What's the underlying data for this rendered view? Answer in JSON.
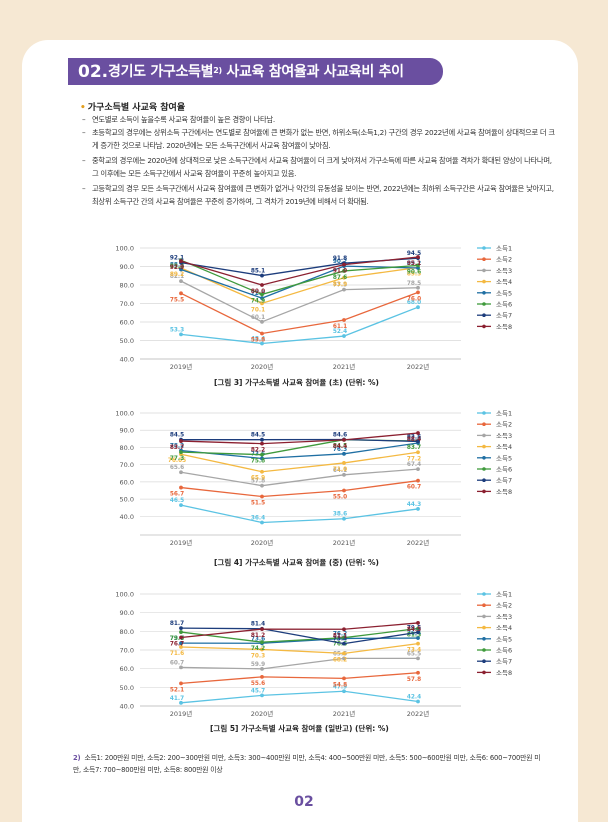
{
  "header": {
    "number": "02.",
    "title_pre": "경기도 가구소득별",
    "title_sup": "2)",
    "title_post": "사교육 참여율과 사교육비 추이"
  },
  "section_title": "가구소득별 사교육 참여율",
  "bullets": [
    "연도별로 소득이 높을수록 사교육 참여율이 높은 경향이 나타남.",
    "초등학교의 경우에는 상위소득 구간에서는 연도별로 참여율에 큰 변화가 없는 반면, 하위소득(소득1,2) 구간의 경우 2022년에 사교육 참여율이 상대적으로 더 크게 증가한 것으로 나타남. 2020년에는 모든 소득구간에서 사교육 참여율이 낮아짐.",
    "중학교의 경우에는 2020년에 상대적으로 낮은 소득구간에서 사교육 참여율이 더 크게 낮아져서 가구소득에 따른 사교육 참여율 격차가 확대된 양상이 나타나며, 그 이후에는 모든 소득구간에서 사교육 참여율이 꾸준히 높아지고 있음.",
    "고등학교의 경우 모든 소득구간에서 사교육 참여율에 큰 변화가 없거나 약간의 유동성을 보이는 반면, 2022년에는 최하위 소득구간은 사교육 참여율은 낮아지고, 최상위 소득구간 간의 사교육 참여율은 꾸준히 증가하여, 그 격차가 2019년에 비해서 더 확대됨."
  ],
  "colors": [
    "#5bc3e3",
    "#e8673c",
    "#a6a6a6",
    "#f4b942",
    "#1f6fa3",
    "#3f9a3c",
    "#1d3d7c",
    "#8b2030"
  ],
  "chart_data": [
    {
      "type": "line",
      "title": "[그림 3] 가구소득별 사교육 참여율 (초) (단위: %)",
      "x": [
        "2019년",
        "2020년",
        "2021년",
        "2022년"
      ],
      "ylim": [
        40,
        100
      ],
      "yticks": [
        "100.0",
        "90.0",
        "80.0",
        "70.0",
        "60.0",
        "50.0",
        "40.0"
      ],
      "series": [
        {
          "name": "소득1",
          "values": [
            53.3,
            48.4,
            52.4,
            68.0
          ]
        },
        {
          "name": "소득2",
          "values": [
            75.5,
            53.8,
            61.1,
            76.0
          ]
        },
        {
          "name": "소득3",
          "values": [
            82.1,
            60.1,
            77.5,
            78.5
          ]
        },
        {
          "name": "소득4",
          "values": [
            89.2,
            70.1,
            83.9,
            89.5
          ]
        },
        {
          "name": "소득5",
          "values": [
            88.4,
            72.9,
            90.2,
            89.2
          ]
        },
        {
          "name": "소득6",
          "values": [
            93.4,
            74.9,
            87.6,
            90.6
          ]
        },
        {
          "name": "소득7",
          "values": [
            92.1,
            85.1,
            91.8,
            94.5
          ]
        },
        {
          "name": "소득8",
          "values": [
            92.9,
            80.0,
            91.0,
            95.1
          ]
        }
      ]
    },
    {
      "type": "line",
      "title": "[그림 4] 가구소득별 사교육 참여율 (중) (단위: %)",
      "x": [
        "2019년",
        "2020년",
        "2021년",
        "2022년"
      ],
      "ylim": [
        30,
        100
      ],
      "yticks": [
        "100.0",
        "90.0",
        "80.0",
        "70.0",
        "60.0",
        "50.0",
        "40.0"
      ],
      "series": [
        {
          "name": "소득1",
          "values": [
            46.5,
            36.4,
            38.6,
            44.3
          ]
        },
        {
          "name": "소득2",
          "values": [
            56.7,
            51.5,
            55.0,
            60.7
          ]
        },
        {
          "name": "소득3",
          "values": [
            65.6,
            57.8,
            64.1,
            67.4
          ]
        },
        {
          "name": "소득4",
          "values": [
            76.05,
            65.9,
            71.0,
            77.2
          ]
        },
        {
          "name": "소득5",
          "values": [
            78.2,
            73.6,
            76.3,
            82.6
          ]
        },
        {
          "name": "소득6",
          "values": [
            77.3,
            75.8,
            84.5,
            83.7
          ]
        },
        {
          "name": "소득7",
          "values": [
            84.5,
            84.5,
            84.6,
            83.5
          ]
        },
        {
          "name": "소득8",
          "values": [
            83.7,
            82.2,
            84.4,
            88.4
          ]
        }
      ]
    },
    {
      "type": "line",
      "title": "[그림 5] 가구소득별 사교육 참여율 (일반고) (단위: %)",
      "x": [
        "2019년",
        "2020년",
        "2021년",
        "2022년"
      ],
      "ylim": [
        40,
        100
      ],
      "yticks": [
        "100.0",
        "90.0",
        "80.0",
        "70.0",
        "60.0",
        "50.0",
        "40.0"
      ],
      "series": [
        {
          "name": "소득1",
          "values": [
            41.7,
            45.7,
            47.9,
            42.4
          ]
        },
        {
          "name": "소득2",
          "values": [
            52.1,
            55.6,
            54.8,
            57.8
          ]
        },
        {
          "name": "소득3",
          "values": [
            60.7,
            59.9,
            65.5,
            65.5
          ]
        },
        {
          "name": "소득4",
          "values": [
            71.6,
            70.3,
            68.2,
            73.4
          ]
        },
        {
          "name": "소득5",
          "values": [
            73.7,
            73.6,
            76.2,
            76.4
          ]
        },
        {
          "name": "소득6",
          "values": [
            79.6,
            74.2,
            76.6,
            81.5
          ]
        },
        {
          "name": "소득7",
          "values": [
            81.7,
            81.4,
            73.4,
            79.5
          ]
        },
        {
          "name": "소득8",
          "values": [
            76.7,
            81.2,
            81.1,
            84.5
          ]
        }
      ]
    }
  ],
  "footnote": {
    "num": "2)",
    "text": "소득1: 200만원 미만, 소득2: 200~300만원 미만, 소득3: 300~400만원 미만, 소득4: 400~500만원 미만, 소득5: 500~600만원 미만, 소득6: 600~700만원 미만, 소득7: 700~800만원 미만, 소득8: 800만원 이상"
  },
  "page_number": "02"
}
